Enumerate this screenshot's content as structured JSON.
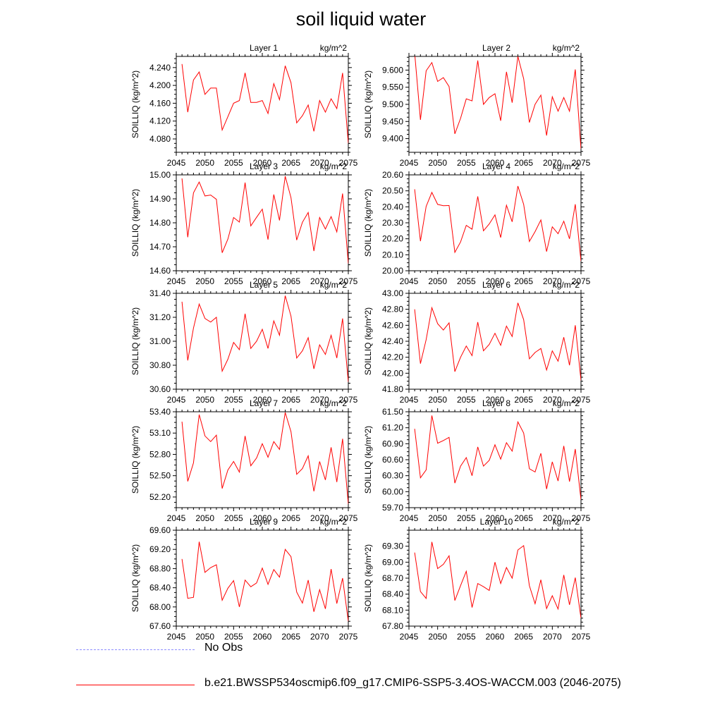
{
  "page": {
    "title": "soil liquid water"
  },
  "legend": [
    {
      "label": "No Obs",
      "color": "#8c8cff",
      "style": "dashed"
    },
    {
      "label": "b.e21.BWSSP534oscmip6.f09_g17.CMIP6-SSP5-3.4OS-WACCM.003 (2046-2075)",
      "color": "#ff0000",
      "style": "solid"
    }
  ],
  "chart_data": [
    {
      "type": "line",
      "title": "Layer 1",
      "units": "kg/m^2",
      "ylabel": "SOILLIQ  (kg/m^2)",
      "xlim": [
        2045,
        2075
      ],
      "xticks": [
        2045,
        2050,
        2055,
        2060,
        2065,
        2070,
        2075
      ],
      "ylim": [
        4.05,
        4.265
      ],
      "yticks": [
        4.08,
        4.12,
        4.16,
        4.2,
        4.24
      ],
      "ytick_labels": [
        "4.080",
        "4.120",
        "4.160",
        "4.200",
        "4.240"
      ],
      "series": [
        {
          "name": "b.e21.BWSSP534oscmip6.f09_g17.CMIP6-SSP5-3.4OS-WACCM.003 (2046-2075)",
          "color": "#ff0000",
          "x": [
            2046,
            2047,
            2048,
            2049,
            2050,
            2051,
            2052,
            2053,
            2054,
            2055,
            2056,
            2057,
            2058,
            2059,
            2060,
            2061,
            2062,
            2063,
            2064,
            2065,
            2066,
            2067,
            2068,
            2069,
            2070,
            2071,
            2072,
            2073,
            2074,
            2075
          ],
          "values": [
            4.248,
            4.14,
            4.212,
            4.23,
            4.18,
            4.194,
            4.194,
            4.1,
            4.13,
            4.16,
            4.166,
            4.228,
            4.162,
            4.162,
            4.166,
            4.137,
            4.204,
            4.168,
            4.244,
            4.206,
            4.116,
            4.132,
            4.156,
            4.097,
            4.166,
            4.14,
            4.17,
            4.148,
            4.228,
            4.07
          ]
        }
      ]
    },
    {
      "type": "line",
      "title": "Layer 2",
      "units": "kg/m^2",
      "ylabel": "SOILLIQ  (kg/m^2)",
      "xlim": [
        2045,
        2075
      ],
      "xticks": [
        2045,
        2050,
        2055,
        2060,
        2065,
        2070,
        2075
      ],
      "ylim": [
        9.36,
        9.64
      ],
      "yticks": [
        9.4,
        9.45,
        9.5,
        9.55,
        9.6
      ],
      "ytick_labels": [
        "9.400",
        "9.450",
        "9.500",
        "9.550",
        "9.600"
      ],
      "series": [
        {
          "name": "b.e21.BWSSP534oscmip6.f09_g17.CMIP6-SSP5-3.4OS-WACCM.003 (2046-2075)",
          "color": "#ff0000",
          "x": [
            2046,
            2047,
            2048,
            2049,
            2050,
            2051,
            2052,
            2053,
            2054,
            2055,
            2056,
            2057,
            2058,
            2059,
            2060,
            2061,
            2062,
            2063,
            2064,
            2065,
            2066,
            2067,
            2068,
            2069,
            2070,
            2071,
            2072,
            2073,
            2074,
            2075
          ],
          "values": [
            9.65,
            9.455,
            9.598,
            9.622,
            9.567,
            9.578,
            9.552,
            9.414,
            9.459,
            9.516,
            9.51,
            9.628,
            9.5,
            9.52,
            9.531,
            9.452,
            9.595,
            9.505,
            9.64,
            9.575,
            9.447,
            9.5,
            9.527,
            9.409,
            9.522,
            9.48,
            9.52,
            9.48,
            9.602,
            9.37
          ]
        }
      ]
    },
    {
      "type": "line",
      "title": "Layer 3",
      "units": "kg/m^2",
      "ylabel": "SOILLIQ  (kg/m^2)",
      "xlim": [
        2045,
        2075
      ],
      "xticks": [
        2045,
        2050,
        2055,
        2060,
        2065,
        2070,
        2075
      ],
      "ylim": [
        14.6,
        15.0
      ],
      "yticks": [
        14.6,
        14.7,
        14.8,
        14.9,
        15.0
      ],
      "ytick_labels": [
        "14.60",
        "14.70",
        "14.80",
        "14.90",
        "15.00"
      ],
      "series": [
        {
          "name": "b.e21.BWSSP534oscmip6.f09_g17.CMIP6-SSP5-3.4OS-WACCM.003 (2046-2075)",
          "color": "#ff0000",
          "x": [
            2046,
            2047,
            2048,
            2049,
            2050,
            2051,
            2052,
            2053,
            2054,
            2055,
            2056,
            2057,
            2058,
            2059,
            2060,
            2061,
            2062,
            2063,
            2064,
            2065,
            2066,
            2067,
            2068,
            2069,
            2070,
            2071,
            2072,
            2073,
            2074,
            2075
          ],
          "values": [
            14.985,
            14.74,
            14.925,
            14.97,
            14.912,
            14.916,
            14.898,
            14.675,
            14.732,
            14.822,
            14.803,
            14.968,
            14.787,
            14.823,
            14.857,
            14.73,
            14.918,
            14.81,
            14.994,
            14.905,
            14.728,
            14.802,
            14.843,
            14.682,
            14.822,
            14.774,
            14.826,
            14.762,
            14.922,
            14.63
          ]
        }
      ]
    },
    {
      "type": "line",
      "title": "Layer 4",
      "units": "kg/m^2",
      "ylabel": "SOILLIQ  (kg/m^2)",
      "xlim": [
        2045,
        2075
      ],
      "xticks": [
        2045,
        2050,
        2055,
        2060,
        2065,
        2070,
        2075
      ],
      "ylim": [
        20.0,
        20.6
      ],
      "yticks": [
        20.0,
        20.1,
        20.2,
        20.3,
        20.4,
        20.5,
        20.6
      ],
      "ytick_labels": [
        "20.00",
        "20.10",
        "20.20",
        "20.30",
        "20.40",
        "20.50",
        "20.60"
      ],
      "series": [
        {
          "name": "b.e21.BWSSP534oscmip6.f09_g17.CMIP6-SSP5-3.4OS-WACCM.003 (2046-2075)",
          "color": "#ff0000",
          "x": [
            2046,
            2047,
            2048,
            2049,
            2050,
            2051,
            2052,
            2053,
            2054,
            2055,
            2056,
            2057,
            2058,
            2059,
            2060,
            2061,
            2062,
            2063,
            2064,
            2065,
            2066,
            2067,
            2068,
            2069,
            2070,
            2071,
            2072,
            2073,
            2074,
            2075
          ],
          "values": [
            20.51,
            20.185,
            20.403,
            20.49,
            20.415,
            20.407,
            20.408,
            20.115,
            20.18,
            20.284,
            20.26,
            20.465,
            20.25,
            20.293,
            20.35,
            20.208,
            20.41,
            20.306,
            20.53,
            20.415,
            20.183,
            20.245,
            20.318,
            20.12,
            20.275,
            20.232,
            20.31,
            20.2,
            20.416,
            20.06
          ]
        }
      ]
    },
    {
      "type": "line",
      "title": "Layer 5",
      "units": "kg/m^2",
      "ylabel": "SOILLIQ  (kg/m^2)",
      "xlim": [
        2045,
        2075
      ],
      "xticks": [
        2045,
        2050,
        2055,
        2060,
        2065,
        2070,
        2075
      ],
      "ylim": [
        30.6,
        31.4
      ],
      "yticks": [
        30.6,
        30.8,
        31.0,
        31.2,
        31.4
      ],
      "ytick_labels": [
        "30.60",
        "30.80",
        "31.00",
        "31.20",
        "31.40"
      ],
      "series": [
        {
          "name": "b.e21.BWSSP534oscmip6.f09_g17.CMIP6-SSP5-3.4OS-WACCM.003 (2046-2075)",
          "color": "#ff0000",
          "x": [
            2046,
            2047,
            2048,
            2049,
            2050,
            2051,
            2052,
            2053,
            2054,
            2055,
            2056,
            2057,
            2058,
            2059,
            2060,
            2061,
            2062,
            2063,
            2064,
            2065,
            2066,
            2067,
            2068,
            2069,
            2070,
            2071,
            2072,
            2073,
            2074,
            2075
          ],
          "values": [
            31.33,
            30.84,
            31.11,
            31.31,
            31.19,
            31.16,
            31.2,
            30.75,
            30.85,
            30.99,
            30.93,
            31.23,
            30.94,
            31.0,
            31.1,
            30.94,
            31.17,
            31.05,
            31.38,
            31.21,
            30.86,
            30.92,
            31.03,
            30.77,
            30.97,
            30.89,
            31.05,
            30.86,
            31.19,
            30.66
          ]
        }
      ]
    },
    {
      "type": "line",
      "title": "Layer 6",
      "units": "kg/m^2",
      "ylabel": "SOILLIQ  (kg/m^2)",
      "xlim": [
        2045,
        2075
      ],
      "xticks": [
        2045,
        2050,
        2055,
        2060,
        2065,
        2070,
        2075
      ],
      "ylim": [
        41.8,
        43.0
      ],
      "yticks": [
        41.8,
        42.0,
        42.2,
        42.4,
        42.6,
        42.8,
        43.0
      ],
      "ytick_labels": [
        "41.80",
        "42.00",
        "42.20",
        "42.40",
        "42.60",
        "42.80",
        "43.00"
      ],
      "series": [
        {
          "name": "b.e21.BWSSP534oscmip6.f09_g17.CMIP6-SSP5-3.4OS-WACCM.003 (2046-2075)",
          "color": "#ff0000",
          "x": [
            2046,
            2047,
            2048,
            2049,
            2050,
            2051,
            2052,
            2053,
            2054,
            2055,
            2056,
            2057,
            2058,
            2059,
            2060,
            2061,
            2062,
            2063,
            2064,
            2065,
            2066,
            2067,
            2068,
            2069,
            2070,
            2071,
            2072,
            2073,
            2074,
            2075
          ],
          "values": [
            42.8,
            42.12,
            42.42,
            42.82,
            42.62,
            42.54,
            42.63,
            42.02,
            42.2,
            42.34,
            42.22,
            42.64,
            42.28,
            42.36,
            42.5,
            42.35,
            42.59,
            42.46,
            42.88,
            42.67,
            42.18,
            42.26,
            42.31,
            42.04,
            42.28,
            42.15,
            42.45,
            42.1,
            42.6,
            41.91
          ]
        }
      ]
    },
    {
      "type": "line",
      "title": "Layer 7",
      "units": "kg/m^2",
      "ylabel": "SOILLIQ  (kg/m^2)",
      "xlim": [
        2045,
        2075
      ],
      "xticks": [
        2045,
        2050,
        2055,
        2060,
        2065,
        2070,
        2075
      ],
      "ylim": [
        52.05,
        53.4
      ],
      "yticks": [
        52.2,
        52.5,
        52.8,
        53.1,
        53.4
      ],
      "ytick_labels": [
        "52.20",
        "52.50",
        "52.80",
        "53.10",
        "53.40"
      ],
      "series": [
        {
          "name": "b.e21.BWSSP534oscmip6.f09_g17.CMIP6-SSP5-3.4OS-WACCM.003 (2046-2075)",
          "color": "#ff0000",
          "x": [
            2046,
            2047,
            2048,
            2049,
            2050,
            2051,
            2052,
            2053,
            2054,
            2055,
            2056,
            2057,
            2058,
            2059,
            2060,
            2061,
            2062,
            2063,
            2064,
            2065,
            2066,
            2067,
            2068,
            2069,
            2070,
            2071,
            2072,
            2073,
            2074,
            2075
          ],
          "values": [
            53.26,
            52.42,
            52.68,
            53.36,
            53.06,
            52.98,
            53.07,
            52.32,
            52.58,
            52.7,
            52.55,
            53.06,
            52.64,
            52.75,
            52.95,
            52.76,
            52.98,
            52.87,
            53.39,
            53.12,
            52.52,
            52.6,
            52.78,
            52.28,
            52.7,
            52.44,
            52.9,
            52.41,
            53.02,
            52.1
          ]
        }
      ]
    },
    {
      "type": "line",
      "title": "Layer 8",
      "units": "kg/m^2",
      "ylabel": "SOILLIQ  (kg/m^2)",
      "xlim": [
        2045,
        2075
      ],
      "xticks": [
        2045,
        2050,
        2055,
        2060,
        2065,
        2070,
        2075
      ],
      "ylim": [
        59.7,
        61.5
      ],
      "yticks": [
        59.7,
        60.0,
        60.3,
        60.6,
        60.9,
        61.2,
        61.5
      ],
      "ytick_labels": [
        "59.70",
        "60.00",
        "60.30",
        "60.60",
        "60.90",
        "61.20",
        "61.50"
      ],
      "series": [
        {
          "name": "b.e21.BWSSP534oscmip6.f09_g17.CMIP6-SSP5-3.4OS-WACCM.003 (2046-2075)",
          "color": "#ff0000",
          "x": [
            2046,
            2047,
            2048,
            2049,
            2050,
            2051,
            2052,
            2053,
            2054,
            2055,
            2056,
            2057,
            2058,
            2059,
            2060,
            2061,
            2062,
            2063,
            2064,
            2065,
            2066,
            2067,
            2068,
            2069,
            2070,
            2071,
            2072,
            2073,
            2074,
            2075
          ],
          "values": [
            61.18,
            60.26,
            60.41,
            61.43,
            60.91,
            60.96,
            61.02,
            60.16,
            60.48,
            60.64,
            60.3,
            60.84,
            60.48,
            60.59,
            60.88,
            60.61,
            60.92,
            60.76,
            61.31,
            61.1,
            60.43,
            60.37,
            60.72,
            60.05,
            60.56,
            60.2,
            60.86,
            60.19,
            60.8,
            59.85
          ]
        }
      ]
    },
    {
      "type": "line",
      "title": "Layer 9",
      "units": "kg/m^2",
      "ylabel": "SOILLIQ  (kg/m^2)",
      "xlim": [
        2045,
        2075
      ],
      "xticks": [
        2045,
        2050,
        2055,
        2060,
        2065,
        2070,
        2075
      ],
      "ylim": [
        67.6,
        69.6
      ],
      "yticks": [
        67.6,
        68.0,
        68.4,
        68.8,
        69.2,
        69.6
      ],
      "ytick_labels": [
        "67.60",
        "68.00",
        "68.40",
        "68.80",
        "69.20",
        "69.60"
      ],
      "series": [
        {
          "name": "b.e21.BWSSP534oscmip6.f09_g17.CMIP6-SSP5-3.4OS-WACCM.003 (2046-2075)",
          "color": "#ff0000",
          "x": [
            2046,
            2047,
            2048,
            2049,
            2050,
            2051,
            2052,
            2053,
            2054,
            2055,
            2056,
            2057,
            2058,
            2059,
            2060,
            2061,
            2062,
            2063,
            2064,
            2065,
            2066,
            2067,
            2068,
            2069,
            2070,
            2071,
            2072,
            2073,
            2074,
            2075
          ],
          "values": [
            69.0,
            68.18,
            68.2,
            69.36,
            68.72,
            68.82,
            68.88,
            68.14,
            68.39,
            68.55,
            68.0,
            68.56,
            68.42,
            68.5,
            68.81,
            68.47,
            68.78,
            68.62,
            69.2,
            69.05,
            68.31,
            68.08,
            68.56,
            67.9,
            68.36,
            67.96,
            68.79,
            68.07,
            68.6,
            67.7
          ]
        }
      ]
    },
    {
      "type": "line",
      "title": "Layer 10",
      "units": "kg/m^2",
      "ylabel": "SOILLIQ  (kg/m^2)",
      "xlim": [
        2045,
        2075
      ],
      "xticks": [
        2045,
        2050,
        2055,
        2060,
        2065,
        2070,
        2075
      ],
      "ylim": [
        67.8,
        69.6
      ],
      "yticks": [
        67.8,
        68.1,
        68.4,
        68.7,
        69.0,
        69.3
      ],
      "ytick_labels": [
        "67.80",
        "68.10",
        "68.40",
        "68.70",
        "69.00",
        "69.30"
      ],
      "series": [
        {
          "name": "b.e21.BWSSP534oscmip6.f09_g17.CMIP6-SSP5-3.4OS-WACCM.003 (2046-2075)",
          "color": "#ff0000",
          "x": [
            2046,
            2047,
            2048,
            2049,
            2050,
            2051,
            2052,
            2053,
            2054,
            2055,
            2056,
            2057,
            2058,
            2059,
            2060,
            2061,
            2062,
            2063,
            2064,
            2065,
            2066,
            2067,
            2068,
            2069,
            2070,
            2071,
            2072,
            2073,
            2074,
            2075
          ],
          "values": [
            69.18,
            68.45,
            68.32,
            69.38,
            68.88,
            68.96,
            69.12,
            68.28,
            68.56,
            68.83,
            68.15,
            68.6,
            68.54,
            68.47,
            69.0,
            68.6,
            68.9,
            68.7,
            69.23,
            69.31,
            68.56,
            68.22,
            68.67,
            68.13,
            68.37,
            68.12,
            68.76,
            68.2,
            68.71,
            67.95
          ]
        }
      ]
    }
  ]
}
